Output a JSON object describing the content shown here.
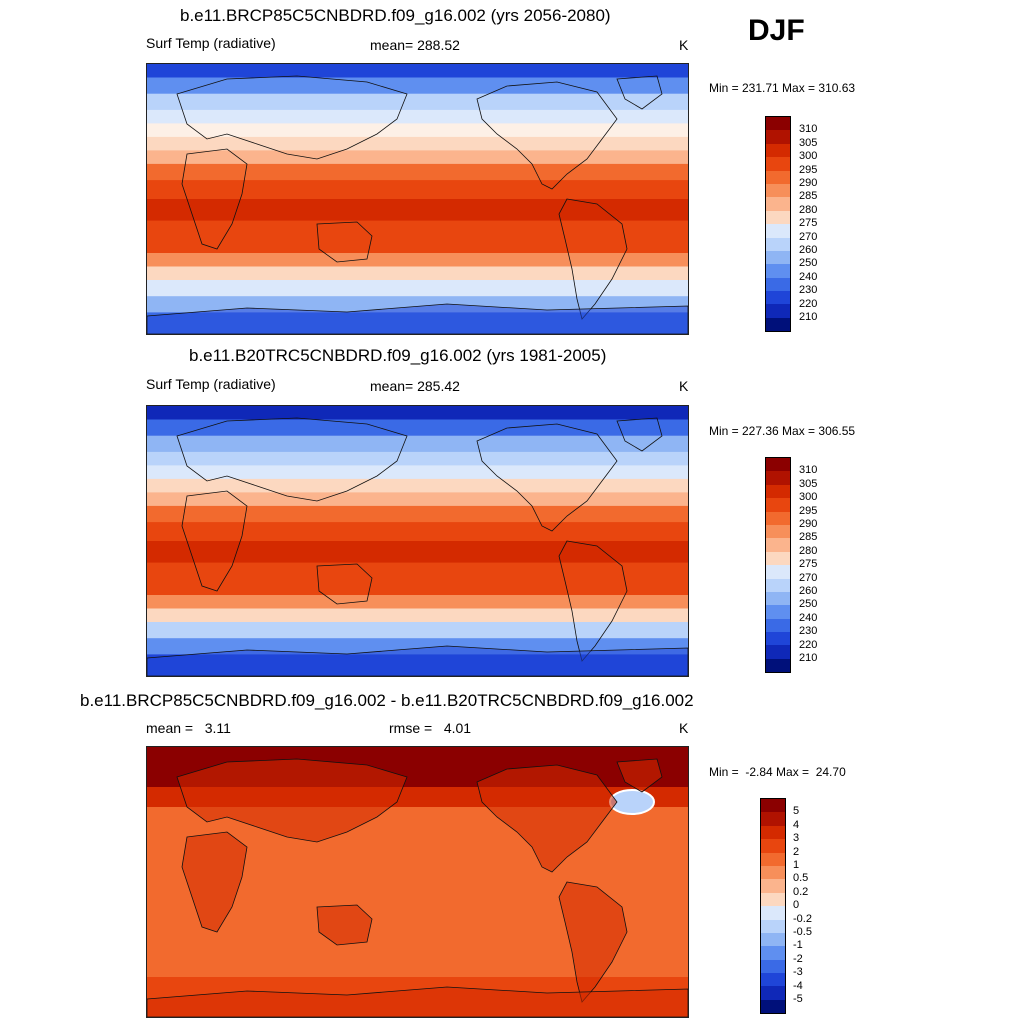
{
  "season": "DJF",
  "panels": [
    {
      "title": "b.e11.BRCP85C5CNBDRD.f09_g16.002 (yrs 2056-2080)",
      "left_label": "Surf Temp (radiative)",
      "center_label": "mean= 288.52",
      "units": "K",
      "minmax": "Min = 231.71 Max = 310.63",
      "colorbar_labels": [
        "310",
        "305",
        "300",
        "295",
        "290",
        "285",
        "280",
        "275",
        "270",
        "260",
        "250",
        "240",
        "230",
        "220",
        "210"
      ],
      "colors": [
        "#8b0000",
        "#b01200",
        "#d42a00",
        "#e8460f",
        "#f26a2e",
        "#f78f5a",
        "#fbb48d",
        "#fcd8c0",
        "#fdf0e6",
        "#dbe8fb",
        "#b9d3fa",
        "#8fb5f4",
        "#5f8ff0",
        "#3a6ae6",
        "#1f45d8",
        "#0f28b8",
        "#00107a"
      ],
      "ice": {
        "north": 0.24,
        "south": 0.16
      }
    },
    {
      "title": "b.e11.B20TRC5CNBDRD.f09_g16.002 (yrs 1981-2005)",
      "left_label": "Surf Temp (radiative)",
      "center_label": "mean= 285.42",
      "units": "K",
      "minmax": "Min = 227.36 Max = 306.55",
      "colorbar_labels": [
        "310",
        "305",
        "300",
        "295",
        "290",
        "285",
        "280",
        "275",
        "270",
        "260",
        "250",
        "240",
        "230",
        "220",
        "210"
      ],
      "colors": [
        "#8b0000",
        "#b01200",
        "#d42a00",
        "#e8460f",
        "#f26a2e",
        "#f78f5a",
        "#fbb48d",
        "#fcd8c0",
        "#fdf0e6",
        "#dbe8fb",
        "#b9d3fa",
        "#8fb5f4",
        "#5f8ff0",
        "#3a6ae6",
        "#1f45d8",
        "#0f28b8",
        "#00107a"
      ],
      "ice": {
        "north": 0.3,
        "south": 0.18
      }
    },
    {
      "title": "b.e11.BRCP85C5CNBDRD.f09_g16.002 - b.e11.B20TRC5CNBDRD.f09_g16.002",
      "left_label": "mean =   3.11",
      "center_label": "rmse =   4.01",
      "units": "K",
      "minmax": "Min =  -2.84 Max =  24.70",
      "colorbar_labels": [
        "5",
        "4",
        "3",
        "2",
        "1",
        "0.5",
        "0.2",
        "0",
        "-0.2",
        "-0.5",
        "-1",
        "-2",
        "-3",
        "-4",
        "-5"
      ],
      "colors": [
        "#8b0000",
        "#b01200",
        "#d42a00",
        "#e8460f",
        "#f26a2e",
        "#f78f5a",
        "#fbb48d",
        "#fcd8c0",
        "#fdf0e6",
        "#dbe8fb",
        "#b9d3fa",
        "#8fb5f4",
        "#5f8ff0",
        "#3a6ae6",
        "#1f45d8",
        "#0f28b8",
        "#00107a"
      ],
      "ice": {
        "north": 0.0,
        "south": 0.0
      }
    }
  ]
}
